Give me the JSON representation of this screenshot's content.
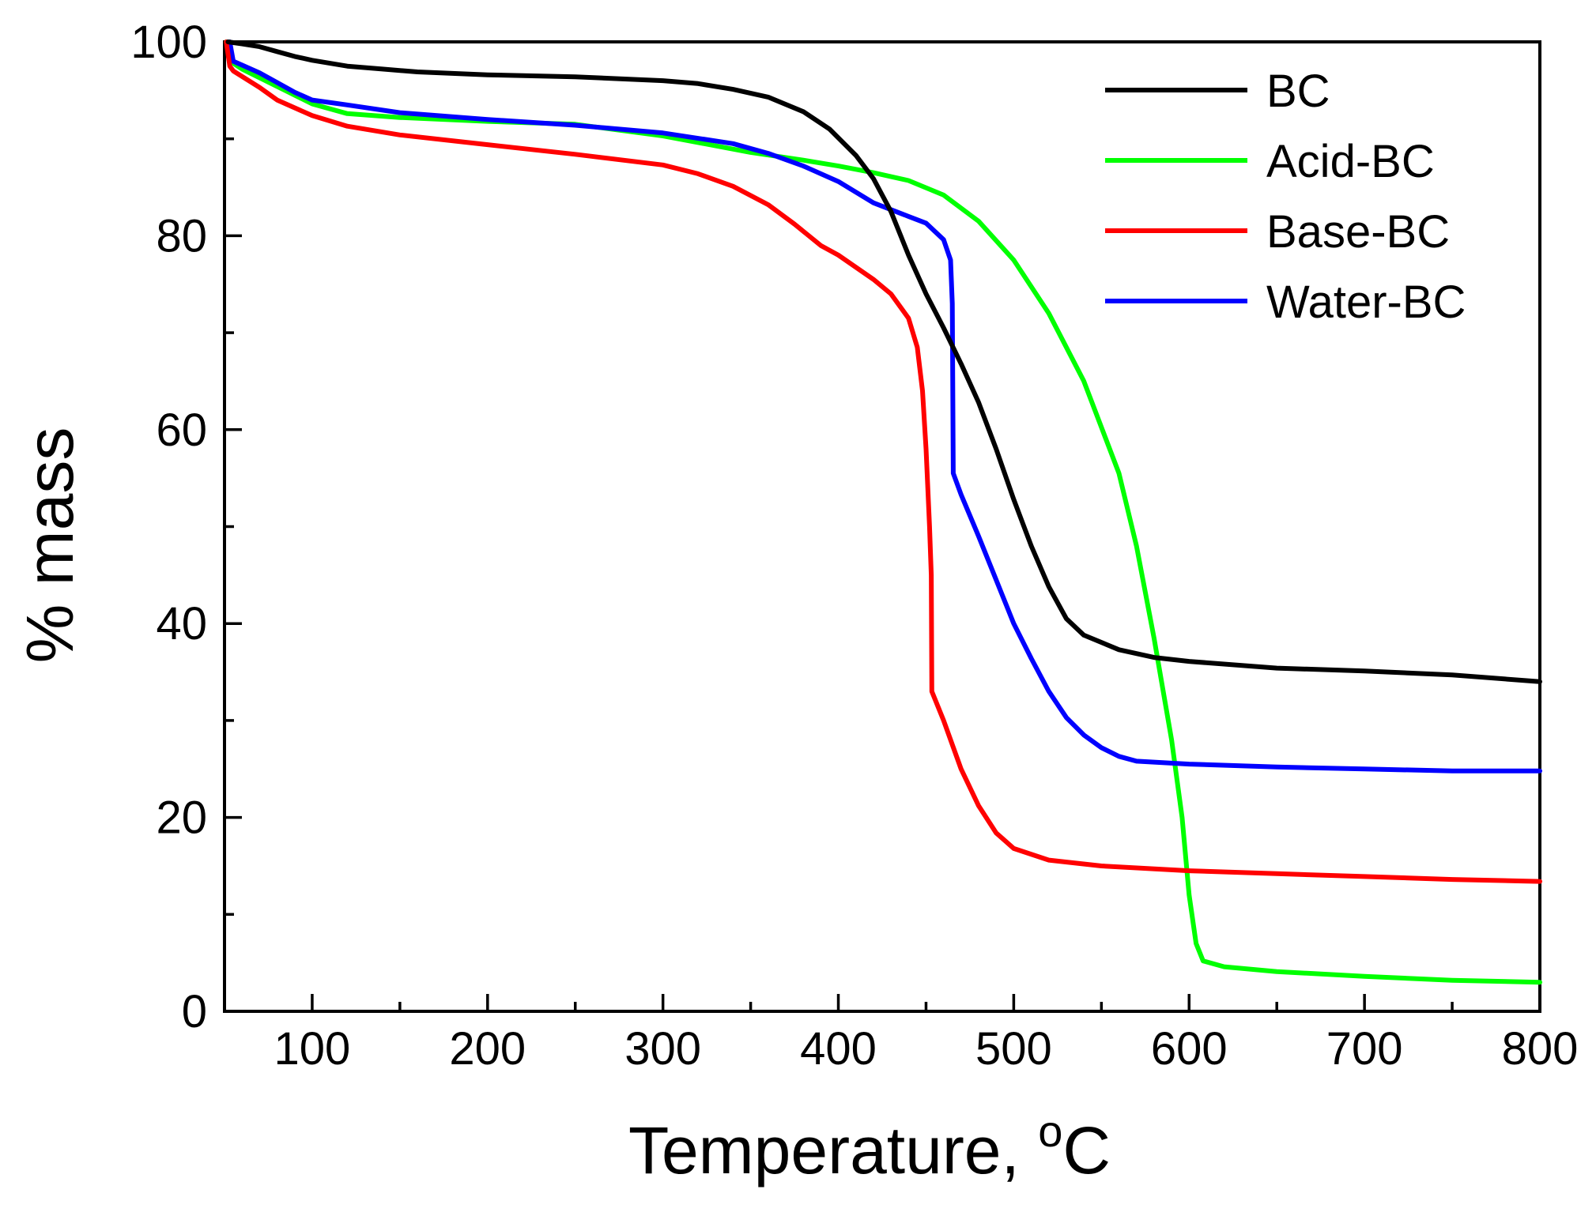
{
  "chart_data": {
    "type": "line",
    "title": "",
    "xlabel": "Temperature, ",
    "xlabel_unit": "oC",
    "ylabel": "% mass",
    "xlim": [
      50,
      800
    ],
    "ylim": [
      0,
      100
    ],
    "x_major_ticks": [
      100,
      200,
      300,
      400,
      500,
      600,
      700,
      800
    ],
    "x_minor_ticks": [
      150,
      250,
      350,
      450,
      550,
      650,
      750
    ],
    "y_major_ticks": [
      0,
      20,
      40,
      60,
      80,
      100
    ],
    "y_minor_ticks": [
      10,
      30,
      50,
      70,
      90
    ],
    "x_tick_labels": [
      "100",
      "200",
      "300",
      "400",
      "500",
      "600",
      "700",
      "800"
    ],
    "y_tick_labels": [
      "0",
      "20",
      "40",
      "60",
      "80",
      "100"
    ],
    "legend_position": "top-right",
    "grid": false,
    "series": [
      {
        "name": "BC",
        "color": "#000000",
        "points": [
          [
            52,
            100
          ],
          [
            60,
            99.8
          ],
          [
            70,
            99.5
          ],
          [
            80,
            99
          ],
          [
            90,
            98.5
          ],
          [
            100,
            98.1
          ],
          [
            120,
            97.5
          ],
          [
            140,
            97.2
          ],
          [
            160,
            96.9
          ],
          [
            200,
            96.6
          ],
          [
            250,
            96.4
          ],
          [
            300,
            96
          ],
          [
            320,
            95.7
          ],
          [
            340,
            95.1
          ],
          [
            360,
            94.3
          ],
          [
            380,
            92.8
          ],
          [
            395,
            91
          ],
          [
            410,
            88.3
          ],
          [
            420,
            85.9
          ],
          [
            430,
            82.5
          ],
          [
            440,
            78
          ],
          [
            450,
            74
          ],
          [
            460,
            70.5
          ],
          [
            470,
            66.8
          ],
          [
            480,
            62.8
          ],
          [
            490,
            58
          ],
          [
            500,
            52.8
          ],
          [
            510,
            48
          ],
          [
            520,
            43.8
          ],
          [
            530,
            40.5
          ],
          [
            540,
            38.8
          ],
          [
            560,
            37.3
          ],
          [
            580,
            36.5
          ],
          [
            600,
            36.1
          ],
          [
            650,
            35.4
          ],
          [
            700,
            35.1
          ],
          [
            750,
            34.7
          ],
          [
            800,
            34
          ]
        ]
      },
      {
        "name": "Acid-BC",
        "color": "#00ff00",
        "points": [
          [
            51,
            100
          ],
          [
            55,
            97.8
          ],
          [
            60,
            97.2
          ],
          [
            80,
            95.4
          ],
          [
            100,
            93.6
          ],
          [
            120,
            92.6
          ],
          [
            150,
            92.2
          ],
          [
            200,
            91.8
          ],
          [
            250,
            91.5
          ],
          [
            300,
            90.3
          ],
          [
            350,
            88.6
          ],
          [
            380,
            87.8
          ],
          [
            400,
            87.2
          ],
          [
            420,
            86.5
          ],
          [
            440,
            85.7
          ],
          [
            460,
            84.2
          ],
          [
            480,
            81.5
          ],
          [
            500,
            77.5
          ],
          [
            520,
            72
          ],
          [
            540,
            65
          ],
          [
            560,
            55.5
          ],
          [
            570,
            48
          ],
          [
            580,
            38.5
          ],
          [
            590,
            28
          ],
          [
            596,
            20
          ],
          [
            600,
            12
          ],
          [
            604,
            7
          ],
          [
            608,
            5.2
          ],
          [
            620,
            4.6
          ],
          [
            650,
            4.1
          ],
          [
            700,
            3.6
          ],
          [
            750,
            3.2
          ],
          [
            800,
            3
          ]
        ]
      },
      {
        "name": "Base-BC",
        "color": "#ff0000",
        "points": [
          [
            51,
            100
          ],
          [
            53,
            97.5
          ],
          [
            55,
            97
          ],
          [
            70,
            95.3
          ],
          [
            80,
            94
          ],
          [
            100,
            92.4
          ],
          [
            120,
            91.3
          ],
          [
            150,
            90.4
          ],
          [
            200,
            89.4
          ],
          [
            250,
            88.4
          ],
          [
            300,
            87.3
          ],
          [
            320,
            86.4
          ],
          [
            340,
            85.1
          ],
          [
            360,
            83.2
          ],
          [
            375,
            81.2
          ],
          [
            390,
            79
          ],
          [
            400,
            78
          ],
          [
            420,
            75.5
          ],
          [
            430,
            74
          ],
          [
            440,
            71.5
          ],
          [
            445,
            68.5
          ],
          [
            448,
            64
          ],
          [
            450,
            58
          ],
          [
            452,
            50
          ],
          [
            453,
            45
          ],
          [
            453.3,
            33
          ],
          [
            460,
            30
          ],
          [
            470,
            25
          ],
          [
            480,
            21.2
          ],
          [
            490,
            18.4
          ],
          [
            500,
            16.8
          ],
          [
            520,
            15.6
          ],
          [
            550,
            15
          ],
          [
            600,
            14.5
          ],
          [
            650,
            14.2
          ],
          [
            700,
            13.9
          ],
          [
            750,
            13.6
          ],
          [
            800,
            13.4
          ]
        ]
      },
      {
        "name": "Water-BC",
        "color": "#0000ff",
        "points": [
          [
            53,
            100
          ],
          [
            55,
            98
          ],
          [
            60,
            97.6
          ],
          [
            70,
            96.8
          ],
          [
            80,
            95.8
          ],
          [
            90,
            94.8
          ],
          [
            100,
            94
          ],
          [
            120,
            93.5
          ],
          [
            150,
            92.7
          ],
          [
            200,
            92
          ],
          [
            250,
            91.4
          ],
          [
            300,
            90.6
          ],
          [
            340,
            89.5
          ],
          [
            360,
            88.5
          ],
          [
            380,
            87.2
          ],
          [
            400,
            85.6
          ],
          [
            420,
            83.4
          ],
          [
            440,
            82
          ],
          [
            450,
            81.3
          ],
          [
            460,
            79.6
          ],
          [
            464,
            77.5
          ],
          [
            465,
            73
          ],
          [
            465.5,
            55.5
          ],
          [
            470,
            53.3
          ],
          [
            480,
            49
          ],
          [
            490,
            44.5
          ],
          [
            500,
            40
          ],
          [
            510,
            36.4
          ],
          [
            520,
            33
          ],
          [
            530,
            30.3
          ],
          [
            540,
            28.5
          ],
          [
            550,
            27.2
          ],
          [
            560,
            26.3
          ],
          [
            570,
            25.8
          ],
          [
            600,
            25.5
          ],
          [
            650,
            25.2
          ],
          [
            700,
            25
          ],
          [
            750,
            24.8
          ],
          [
            800,
            24.8
          ]
        ]
      }
    ]
  }
}
